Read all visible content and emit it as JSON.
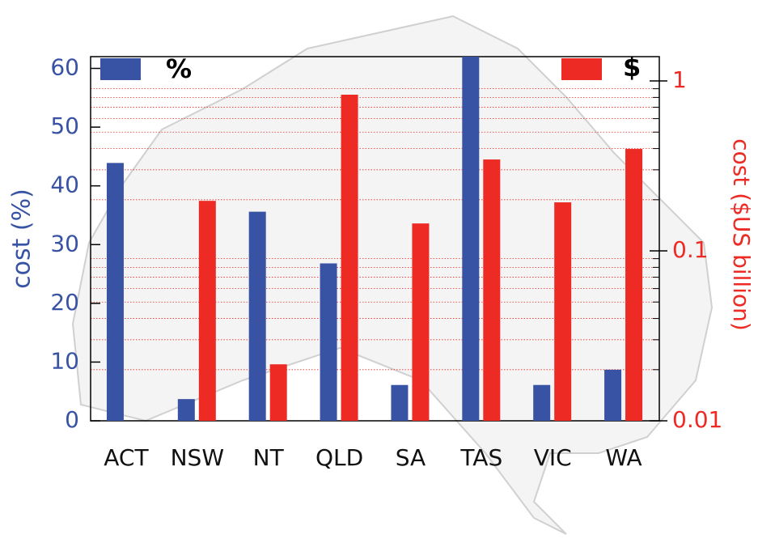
{
  "chart_data": {
    "type": "bar",
    "categories": [
      "ACT",
      "NSW",
      "NT",
      "QLD",
      "SA",
      "TAS",
      "VIC",
      "WA"
    ],
    "series": [
      {
        "name": "%",
        "color": "#3953a4",
        "axis": "y",
        "values": [
          43.9,
          3.7,
          35.6,
          26.8,
          6.1,
          62,
          6.1,
          8.7
        ]
      },
      {
        "name": "$",
        "color": "#ed2a24",
        "axis": "y2",
        "values": [
          null,
          0.197,
          0.0215,
          0.83,
          0.145,
          0.345,
          0.193,
          0.398
        ]
      }
    ],
    "ylabel": "cost (%)",
    "y2label": "cost ($US billion)",
    "ylim": [
      0,
      62
    ],
    "yticks": [
      0,
      10,
      20,
      30,
      40,
      50,
      60
    ],
    "y2lim": [
      0.01,
      1.39
    ],
    "y2scale": "log",
    "y2ticks": [
      0.01,
      0.1,
      1
    ],
    "y2_minor_ticks": [
      0.02,
      0.03,
      0.04,
      0.05,
      0.06,
      0.07,
      0.08,
      0.09,
      0.2,
      0.3,
      0.4,
      0.5,
      0.6,
      0.7,
      0.8,
      0.9
    ],
    "grid": true
  }
}
